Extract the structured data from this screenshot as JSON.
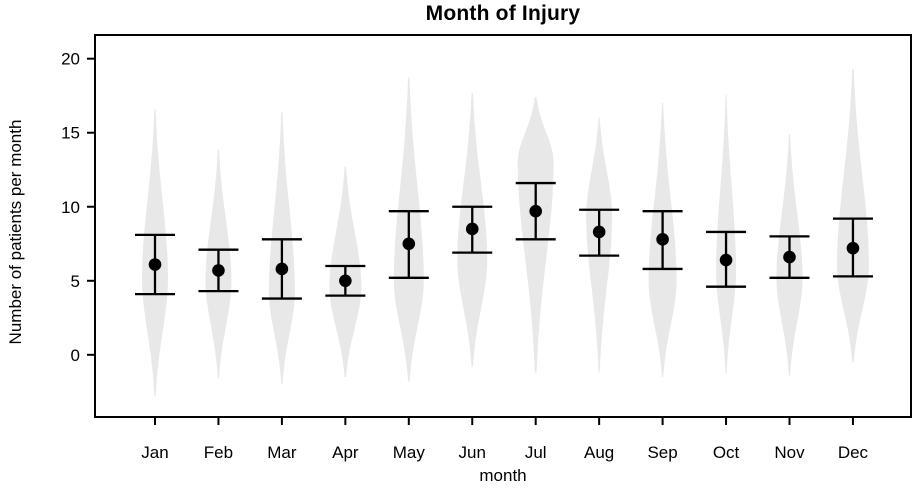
{
  "title": "Month of Injury",
  "colors": {
    "violin_fill": "#e8e8e8",
    "marker": "#000000",
    "frame": "#000000",
    "text": "#000000",
    "background": "#ffffff"
  },
  "chart_data": {
    "type": "violin",
    "title": "Month of Injury",
    "xlabel": "month",
    "ylabel": "Number of patients per month",
    "ylim": [
      0,
      20
    ],
    "yticks": [
      0,
      5,
      10,
      15,
      20
    ],
    "grid": false,
    "legend": false,
    "categories": [
      "Jan",
      "Feb",
      "Mar",
      "Apr",
      "May",
      "Jun",
      "Jul",
      "Aug",
      "Sep",
      "Oct",
      "Nov",
      "Dec"
    ],
    "series": [
      {
        "name": "mean",
        "values": [
          6.1,
          5.7,
          5.8,
          5.0,
          7.5,
          8.5,
          9.7,
          8.3,
          7.8,
          6.4,
          6.6,
          7.2
        ]
      },
      {
        "name": "error_lower",
        "values": [
          4.1,
          4.3,
          3.8,
          4.0,
          5.2,
          6.9,
          7.8,
          6.7,
          5.8,
          4.6,
          5.2,
          5.3
        ]
      },
      {
        "name": "error_upper",
        "values": [
          8.1,
          7.1,
          7.8,
          6.0,
          9.7,
          10.0,
          11.6,
          9.8,
          9.7,
          8.3,
          8.0,
          9.2
        ]
      },
      {
        "name": "violin_min",
        "values": [
          -2.8,
          -1.6,
          -2.0,
          -1.5,
          -1.8,
          -0.8,
          -1.2,
          -1.2,
          -1.5,
          -1.3,
          -1.4,
          -0.5
        ]
      },
      {
        "name": "violin_max",
        "values": [
          16.6,
          13.9,
          16.4,
          12.7,
          18.7,
          17.7,
          17.4,
          16.0,
          17.0,
          17.6,
          14.9,
          19.3
        ]
      },
      {
        "name": "violin_mode",
        "values": [
          5.2,
          5.0,
          4.3,
          4.6,
          5.0,
          6.4,
          13.0,
          9.4,
          5.0,
          5.7,
          5.2,
          6.0
        ]
      },
      {
        "name": "violin_halfwidth_px",
        "values": [
          13,
          13,
          13,
          16,
          15,
          15,
          18,
          13,
          14,
          10,
          13,
          16
        ]
      }
    ]
  }
}
